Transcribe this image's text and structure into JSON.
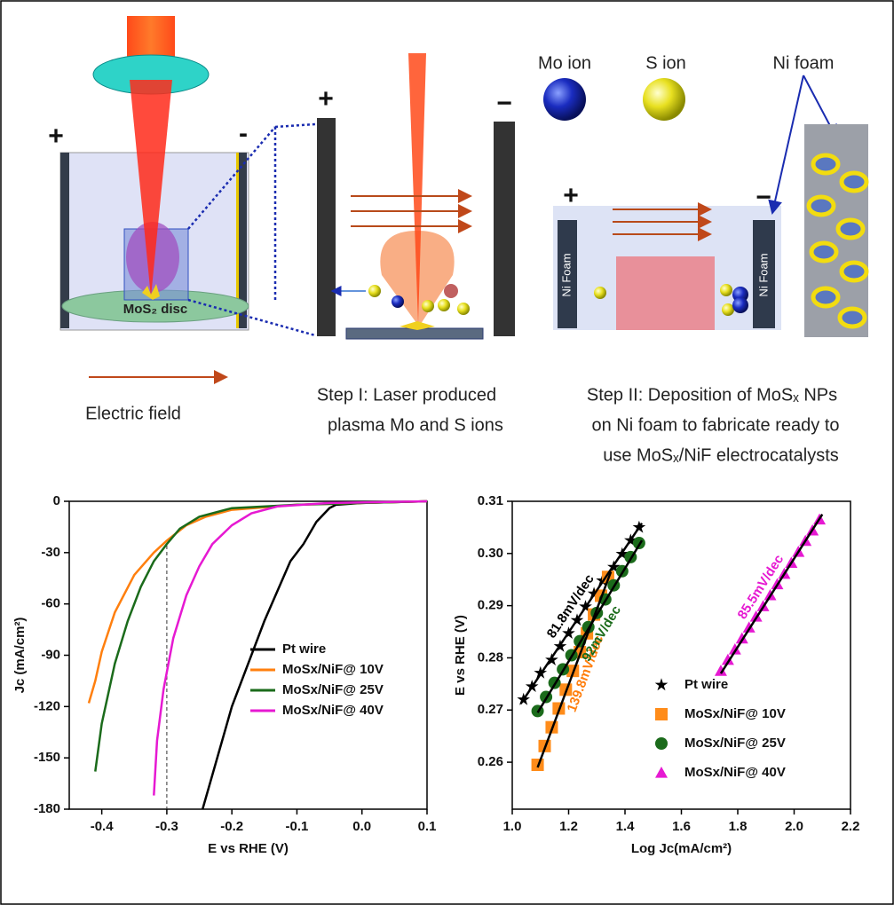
{
  "schematic": {
    "left_plus": "+",
    "left_minus": "-",
    "disc_label": "MoS₂ disc",
    "field_label": "Electric field",
    "mid_plus": "+",
    "mid_minus": "−",
    "step1": [
      "Step I: Laser produced",
      "plasma Mo and S ions"
    ],
    "mo_label": "Mo ion",
    "s_label": "S ion",
    "foam_label": "Ni foam",
    "cell_plus": "+",
    "cell_minus": "−",
    "foam_left": "Ni Foam",
    "foam_right": "Ni Foam",
    "step2": [
      "Step II: Deposition of MoSₓ NPs",
      "on Ni foam to fabricate ready to",
      "use MoSₓ/NiF electrocatalysts"
    ]
  },
  "chart_data": [
    {
      "type": "line",
      "xlabel": "E vs RHE (V)",
      "ylabel": "Jc (mA/cm²)",
      "xlim": [
        -0.45,
        0.1
      ],
      "ylim": [
        -180,
        0
      ],
      "xticks": [
        -0.4,
        -0.3,
        -0.2,
        -0.1,
        {
          "value": 0,
          "label": "0.0"
        },
        0.1
      ],
      "yticks": [
        0,
        -30,
        -60,
        -90,
        -120,
        -150,
        -180
      ],
      "ref_x": -0.3,
      "series": [
        {
          "name": "Pt wire",
          "color": "#000000",
          "x": [
            -0.245,
            -0.2,
            -0.15,
            -0.11,
            -0.09,
            -0.07,
            -0.05,
            -0.04,
            0,
            0.1
          ],
          "values": [
            -180,
            -120,
            -70,
            -35,
            -25,
            -12,
            -4,
            -2,
            -1,
            0
          ]
        },
        {
          "name": "MoSx/NiF@ 10V",
          "color": "#ff7f0e",
          "x": [
            -0.42,
            -0.41,
            -0.4,
            -0.38,
            -0.35,
            -0.32,
            -0.3,
            -0.27,
            -0.24,
            -0.2,
            -0.1,
            0,
            0.1
          ],
          "values": [
            -118,
            -105,
            -88,
            -65,
            -43,
            -30,
            -23,
            -14,
            -9,
            -5,
            -2,
            -1,
            0
          ]
        },
        {
          "name": "MoSx/NiF@ 25V",
          "color": "#1b6b1b",
          "x": [
            -0.41,
            -0.4,
            -0.38,
            -0.36,
            -0.34,
            -0.32,
            -0.3,
            -0.28,
            -0.25,
            -0.2,
            -0.1,
            0,
            0.1
          ],
          "values": [
            -158,
            -130,
            -95,
            -70,
            -50,
            -35,
            -25,
            -16,
            -9,
            -4,
            -2,
            -1,
            0
          ]
        },
        {
          "name": "MoSx/NiF@ 40V",
          "color": "#e619d2",
          "x": [
            -0.32,
            -0.315,
            -0.305,
            -0.29,
            -0.27,
            -0.25,
            -0.23,
            -0.2,
            -0.17,
            -0.13,
            -0.05,
            0.1
          ],
          "values": [
            -172,
            -140,
            -110,
            -80,
            -55,
            -38,
            -25,
            -14,
            -7,
            -3,
            -1,
            0
          ]
        }
      ]
    },
    {
      "type": "scatter",
      "xlabel": "Log Jc(mA/cm²)",
      "ylabel": "E vs RHE (V)",
      "xlim": [
        1.0,
        2.2
      ],
      "ylim": [
        0.251,
        0.31
      ],
      "xticks": [
        {
          "value": 1,
          "label": "1.0"
        },
        1.2,
        1.4,
        1.6,
        1.8,
        {
          "value": 2,
          "label": "2.0"
        },
        2.2
      ],
      "yticks": [
        0.26,
        0.27,
        0.28,
        0.29,
        {
          "value": 0.3,
          "label": "0.30"
        },
        0.31
      ],
      "series": [
        {
          "name": "Pt wire",
          "color": "#000000",
          "marker": "star",
          "x": [
            1.04,
            1.07,
            1.1,
            1.14,
            1.17,
            1.2,
            1.23,
            1.26,
            1.29,
            1.32,
            1.36,
            1.39,
            1.42,
            1.45
          ],
          "values": [
            0.272,
            0.2745,
            0.2771,
            0.2796,
            0.2822,
            0.2847,
            0.2872,
            0.2898,
            0.2923,
            0.2948,
            0.2974,
            0.2999,
            0.3025,
            0.305
          ]
        },
        {
          "name": "MoSx/NiF@ 10V",
          "color": "#ff8c1a",
          "marker": "square",
          "x": [
            1.09,
            1.115,
            1.14,
            1.165,
            1.19,
            1.215,
            1.24,
            1.265,
            1.29,
            1.315,
            1.34
          ],
          "values": [
            0.2595,
            0.2631,
            0.2667,
            0.2703,
            0.2739,
            0.2775,
            0.2811,
            0.2847,
            0.2883,
            0.2919,
            0.2955
          ]
        },
        {
          "name": "MoSx/NiF@ 25V",
          "color": "#1b6b1b",
          "marker": "circle",
          "x": [
            1.09,
            1.12,
            1.15,
            1.18,
            1.21,
            1.24,
            1.27,
            1.3,
            1.33,
            1.36,
            1.39,
            1.42,
            1.45
          ],
          "values": [
            0.2698,
            0.2725,
            0.2752,
            0.2778,
            0.2805,
            0.2832,
            0.2859,
            0.2886,
            0.2912,
            0.2939,
            0.2966,
            0.2993,
            0.302
          ]
        },
        {
          "name": "MoSx/NiF@ 40V",
          "color": "#e619d2",
          "marker": "triangle",
          "x": [
            1.74,
            1.765,
            1.79,
            1.815,
            1.84,
            1.865,
            1.89,
            1.915,
            1.94,
            1.965,
            1.99,
            2.015,
            2.04,
            2.065,
            2.09
          ],
          "values": [
            0.2775,
            0.2796,
            0.2816,
            0.2837,
            0.2858,
            0.2879,
            0.2899,
            0.292,
            0.2941,
            0.2961,
            0.2982,
            0.3003,
            0.3024,
            0.3044,
            0.3065
          ]
        }
      ],
      "fits": [
        {
          "label": "81.8mV/dec",
          "color": "#000000",
          "x": [
            1.03,
            1.46
          ],
          "values": [
            0.2712,
            0.3058
          ]
        },
        {
          "label": "139.8mV/dec",
          "color": "#ff7f0e",
          "x": [
            1.09,
            1.35
          ],
          "values": [
            0.259,
            0.2965
          ]
        },
        {
          "label": "92mV/dec",
          "color": "#1b6b1b",
          "x": [
            1.09,
            1.46
          ],
          "values": [
            0.2695,
            0.3025
          ]
        },
        {
          "label": "85.5mV/dec",
          "color": "#e619d2",
          "x": [
            1.74,
            2.1
          ],
          "values": [
            0.277,
            0.3075
          ]
        }
      ]
    }
  ]
}
